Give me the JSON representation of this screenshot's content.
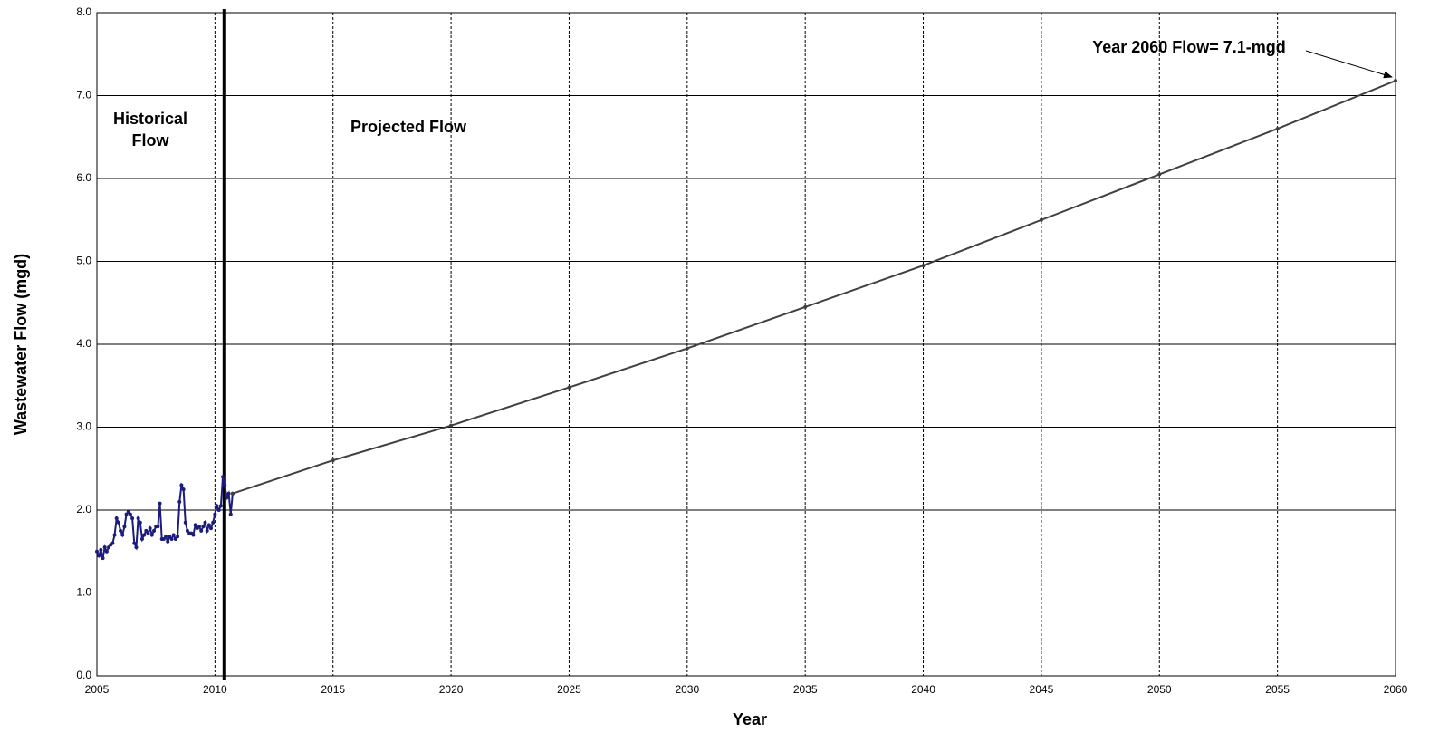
{
  "chart_data": {
    "type": "line",
    "x_label": "Year",
    "y_label": "Wastewater Flow (mgd)",
    "xlim": [
      2005,
      2060
    ],
    "ylim": [
      0,
      8
    ],
    "xticks": [
      2005,
      2010,
      2015,
      2020,
      2025,
      2030,
      2035,
      2040,
      2045,
      2050,
      2055,
      2060
    ],
    "yticks": [
      {
        "value": 0,
        "label": "0.0"
      },
      {
        "value": 1,
        "label": "1.0"
      },
      {
        "value": 2,
        "label": "2.0"
      },
      {
        "value": 3,
        "label": "3.0"
      },
      {
        "value": 4,
        "label": "4.0"
      },
      {
        "value": 5,
        "label": "5.0"
      },
      {
        "value": 6,
        "label": "6.0"
      },
      {
        "value": 7,
        "label": "7.0"
      },
      {
        "value": 8,
        "label": "8.0"
      }
    ],
    "grid": true,
    "divider_x": 2010.4,
    "annotations": [
      {
        "lines": [
          "Historical",
          "Flow"
        ]
      },
      {
        "lines": [
          "Projected Flow"
        ]
      },
      {
        "lines": [
          "Year 2060 Flow= 7.1-mgd"
        ]
      }
    ],
    "series": [
      {
        "name": "Historical",
        "color": "#1c1c7c",
        "x": [
          2005.0,
          2005.083,
          2005.167,
          2005.25,
          2005.333,
          2005.417,
          2005.5,
          2005.583,
          2005.667,
          2005.75,
          2005.833,
          2005.917,
          2006.0,
          2006.083,
          2006.167,
          2006.25,
          2006.333,
          2006.417,
          2006.5,
          2006.583,
          2006.667,
          2006.75,
          2006.833,
          2006.917,
          2007.0,
          2007.083,
          2007.167,
          2007.25,
          2007.333,
          2007.417,
          2007.5,
          2007.583,
          2007.667,
          2007.75,
          2007.833,
          2007.917,
          2008.0,
          2008.083,
          2008.167,
          2008.25,
          2008.333,
          2008.417,
          2008.5,
          2008.583,
          2008.667,
          2008.75,
          2008.833,
          2008.917,
          2009.0,
          2009.083,
          2009.167,
          2009.25,
          2009.333,
          2009.417,
          2009.5,
          2009.583,
          2009.667,
          2009.75,
          2009.833,
          2009.917,
          2010.0,
          2010.083,
          2010.167,
          2010.25,
          2010.333,
          2010.417,
          2010.5,
          2010.583,
          2010.667,
          2010.75
        ],
        "values": [
          1.5,
          1.45,
          1.52,
          1.42,
          1.55,
          1.5,
          1.55,
          1.58,
          1.6,
          1.7,
          1.9,
          1.85,
          1.75,
          1.7,
          1.8,
          1.95,
          1.98,
          1.95,
          1.9,
          1.6,
          1.55,
          1.9,
          1.85,
          1.65,
          1.7,
          1.75,
          1.72,
          1.78,
          1.7,
          1.75,
          1.8,
          1.8,
          2.08,
          1.65,
          1.65,
          1.68,
          1.62,
          1.68,
          1.65,
          1.7,
          1.65,
          1.68,
          2.1,
          2.3,
          2.25,
          1.85,
          1.75,
          1.72,
          1.72,
          1.7,
          1.82,
          1.78,
          1.8,
          1.75,
          1.8,
          1.85,
          1.75,
          1.82,
          1.78,
          1.85,
          1.95,
          2.05,
          2.0,
          2.05,
          2.4,
          2.3,
          2.15,
          2.2,
          1.95,
          2.2
        ]
      },
      {
        "name": "Projected",
        "color": "#404040",
        "x": [
          2010.75,
          2015,
          2020,
          2025,
          2030,
          2035,
          2040,
          2045,
          2050,
          2055,
          2060
        ],
        "values": [
          2.2,
          2.6,
          3.02,
          3.48,
          3.95,
          4.45,
          4.95,
          5.5,
          6.05,
          6.6,
          7.18
        ]
      }
    ]
  }
}
